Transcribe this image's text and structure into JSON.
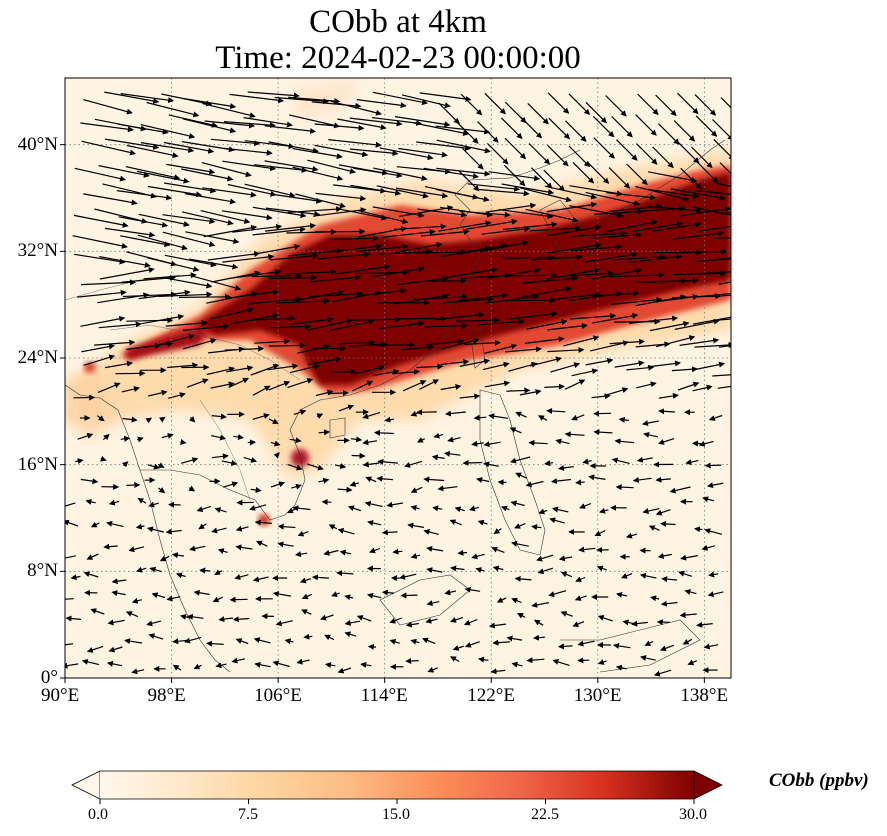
{
  "title": {
    "line1": "CObb at 4km",
    "line2": "Time: 2024-02-23 00:00:00"
  },
  "map": {
    "type": "geographic-heatmap-with-wind-vectors",
    "projection": "PlateCarree",
    "extent": {
      "lon": [
        90,
        140
      ],
      "lat": [
        0,
        45
      ]
    },
    "gridlines": "dotted",
    "lon_ticks": [
      "90°E",
      "98°E",
      "106°E",
      "114°E",
      "122°E",
      "130°E",
      "138°E"
    ],
    "lat_ticks": [
      "0°",
      "8°N",
      "16°N",
      "24°N",
      "32°N",
      "40°N"
    ],
    "colormap": "OrRd",
    "colors": {
      "low": "#fff7ec",
      "mid": "#fdbb84",
      "high": "#7f0000"
    }
  },
  "colorbar": {
    "label": "CObb (ppbv)",
    "ticks": [
      "0.0",
      "7.5",
      "15.0",
      "22.5",
      "30.0"
    ],
    "range": [
      0,
      30
    ],
    "extend": "both"
  },
  "chart_data": {
    "type": "heatmap",
    "title": "CObb at 4km\nTime: 2024-02-23 00:00:00",
    "xlabel": "",
    "ylabel": "",
    "xlim": [
      90,
      140
    ],
    "ylim": [
      0,
      45
    ],
    "colorbar_range": [
      0,
      30
    ],
    "colorbar_label": "CObb (ppbv)",
    "high_concentration_band": {
      "description": "plume >30 ppbv stretching southwest-northeast",
      "points_lon_lat": [
        [
          94,
          25
        ],
        [
          100,
          27
        ],
        [
          106,
          29
        ],
        [
          112,
          30
        ],
        [
          120,
          31
        ],
        [
          128,
          33
        ],
        [
          136,
          35
        ],
        [
          140,
          36
        ]
      ]
    },
    "hotspots_lon_lat": [
      [
        107.5,
        16.5
      ],
      [
        105.5,
        12
      ],
      [
        92,
        23
      ]
    ],
    "wind_flow": "strong westerlies north of ~20°N, weak easterlies to the south"
  }
}
